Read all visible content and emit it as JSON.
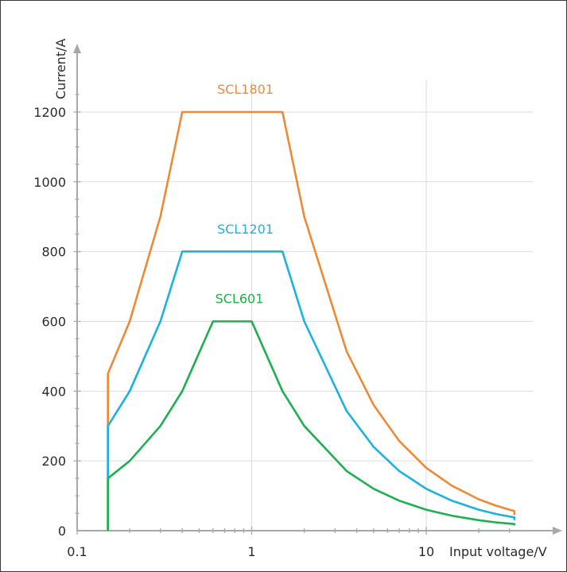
{
  "chart_data": {
    "type": "line",
    "xlabel": "Input voltage/V",
    "ylabel": "Current/A",
    "xscale": "log",
    "xlim": [
      0.1,
      35
    ],
    "ylim": [
      0,
      1250
    ],
    "grid": true,
    "x_ticks": [
      {
        "value": 0.1,
        "label": "0.1"
      },
      {
        "value": 1,
        "label": "1"
      },
      {
        "value": 10,
        "label": "10"
      }
    ],
    "y_ticks": [
      {
        "value": 0,
        "label": "0"
      },
      {
        "value": 200,
        "label": "200"
      },
      {
        "value": 400,
        "label": "400"
      },
      {
        "value": 600,
        "label": "600"
      },
      {
        "value": 800,
        "label": "800"
      },
      {
        "value": 1000,
        "label": "1000"
      },
      {
        "value": 1200,
        "label": "1200"
      }
    ],
    "series": [
      {
        "name": "SCL1801",
        "color": "#ee8a36",
        "points": [
          [
            0.15,
            0
          ],
          [
            0.15,
            450
          ],
          [
            0.2,
            600
          ],
          [
            0.3,
            900
          ],
          [
            0.4,
            1200
          ],
          [
            1.5,
            1200
          ],
          [
            2,
            900
          ],
          [
            3.5,
            514
          ],
          [
            5,
            360
          ],
          [
            7,
            257
          ],
          [
            10,
            180
          ],
          [
            14,
            129
          ],
          [
            20,
            90
          ],
          [
            25,
            72
          ],
          [
            32,
            56
          ],
          [
            32,
            45
          ]
        ]
      },
      {
        "name": "SCL1201",
        "color": "#1ab2e0",
        "points": [
          [
            0.15,
            0
          ],
          [
            0.15,
            300
          ],
          [
            0.2,
            400
          ],
          [
            0.3,
            600
          ],
          [
            0.4,
            800
          ],
          [
            1.5,
            800
          ],
          [
            2,
            600
          ],
          [
            3.5,
            343
          ],
          [
            5,
            240
          ],
          [
            7,
            171
          ],
          [
            10,
            120
          ],
          [
            14,
            86
          ],
          [
            20,
            60
          ],
          [
            25,
            48
          ],
          [
            32,
            38
          ],
          [
            32,
            30
          ]
        ]
      },
      {
        "name": "SCL601",
        "color": "#1db04f",
        "points": [
          [
            0.15,
            0
          ],
          [
            0.15,
            150
          ],
          [
            0.2,
            200
          ],
          [
            0.3,
            300
          ],
          [
            0.4,
            400
          ],
          [
            0.6,
            600
          ],
          [
            1,
            600
          ],
          [
            1.5,
            400
          ],
          [
            2,
            300
          ],
          [
            3.5,
            171
          ],
          [
            5,
            120
          ],
          [
            7,
            86
          ],
          [
            10,
            60
          ],
          [
            14,
            43
          ],
          [
            20,
            30
          ],
          [
            25,
            24
          ],
          [
            32,
            19
          ],
          [
            32,
            15
          ]
        ]
      }
    ],
    "annotations": [
      {
        "text": "SCL1801",
        "series": "SCL1801",
        "x": 0.92,
        "y": 1252
      },
      {
        "text": "SCL1201",
        "series": "SCL1201",
        "x": 0.92,
        "y": 852
      },
      {
        "text": "SCL601",
        "series": "SCL601",
        "x": 0.85,
        "y": 652
      }
    ]
  }
}
